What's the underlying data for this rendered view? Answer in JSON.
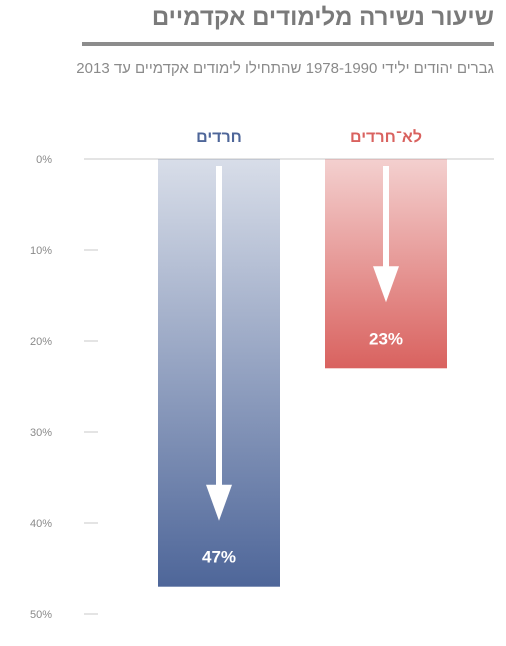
{
  "title": "שיעור נשירה מלימודים אקדמיים",
  "subtitle": "גברים יהודים ילידי 1978-1990 שהתחילו לימודים אקדמיים עד 2013",
  "colors": {
    "haredim": "#4e6699",
    "non_haredim": "#d9625f",
    "axis_text": "#8a8a8a",
    "tick": "#c8c8c8"
  },
  "chart_data": {
    "type": "bar",
    "title": "שיעור נשירה מלימודים אקדמיים",
    "subtitle": "גברים יהודים ילידי 1978-1990 שהתחילו לימודים אקדמיים עד 2013",
    "categories": [
      "חרדים",
      "לא־חרדים"
    ],
    "values": [
      47,
      23
    ],
    "value_labels": [
      "47%",
      "23%"
    ],
    "ylim": [
      0,
      50
    ],
    "yticks": [
      0,
      10,
      20,
      30,
      40,
      50
    ],
    "ytick_labels": [
      "0%",
      "10%",
      "20%",
      "30%",
      "40%",
      "50%"
    ],
    "y_inverted": true,
    "grid": false,
    "legend": "none"
  }
}
